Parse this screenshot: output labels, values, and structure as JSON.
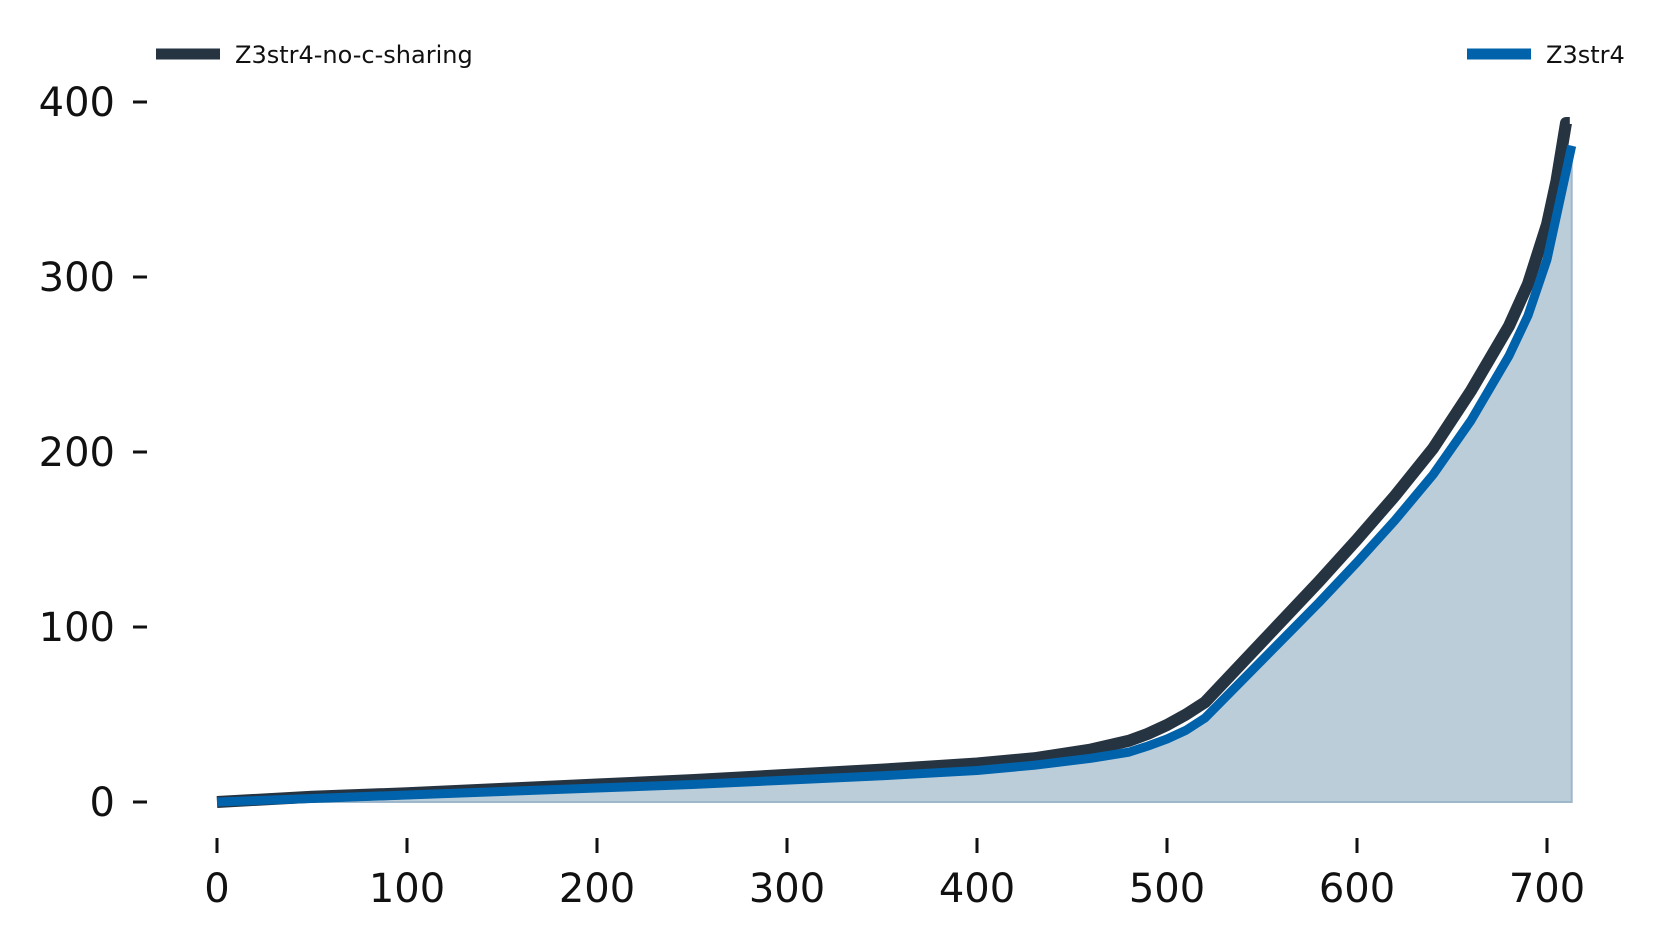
{
  "chart_data": {
    "type": "line",
    "title": "",
    "xlabel": "",
    "ylabel": "",
    "xlim": [
      -5,
      720
    ],
    "ylim": [
      -5,
      410
    ],
    "xticks": [
      0,
      100,
      200,
      300,
      400,
      500,
      600,
      700
    ],
    "yticks": [
      0,
      100,
      200,
      300,
      400
    ],
    "xtick_labels": [
      "0",
      "100",
      "200",
      "300",
      "400",
      "500",
      "600",
      "700"
    ],
    "ytick_labels": [
      "0",
      "100",
      "200",
      "300",
      "400"
    ],
    "grid": false,
    "legend_position": "top",
    "series": [
      {
        "name": "Z3str4-no-c-sharing",
        "color": "#263340",
        "x": [
          0,
          50,
          100,
          150,
          200,
          250,
          300,
          350,
          400,
          430,
          460,
          480,
          490,
          500,
          510,
          520,
          540,
          560,
          580,
          600,
          620,
          640,
          660,
          680,
          690,
          700,
          705,
          710,
          712
        ],
        "y": [
          0,
          3,
          5,
          7.5,
          10,
          12.5,
          15.5,
          18.5,
          22,
          25,
          30,
          35,
          39,
          44,
          50,
          57,
          80,
          103,
          126,
          150,
          175,
          202,
          235,
          272,
          296,
          330,
          355,
          388,
          388
        ]
      },
      {
        "name": "Z3str4",
        "color": "#0062aa",
        "fill_color": "#bccdda",
        "x": [
          0,
          50,
          100,
          150,
          200,
          250,
          300,
          350,
          400,
          430,
          460,
          480,
          490,
          500,
          510,
          520,
          540,
          560,
          580,
          600,
          620,
          640,
          660,
          680,
          690,
          700,
          705,
          710,
          713
        ],
        "y": [
          0,
          2,
          4,
          6,
          8,
          10,
          12.5,
          15,
          18,
          21,
          25,
          28.5,
          32,
          36,
          41,
          48,
          70,
          92,
          114,
          137,
          161,
          187,
          218,
          255,
          278,
          310,
          335,
          360,
          375
        ]
      }
    ]
  }
}
